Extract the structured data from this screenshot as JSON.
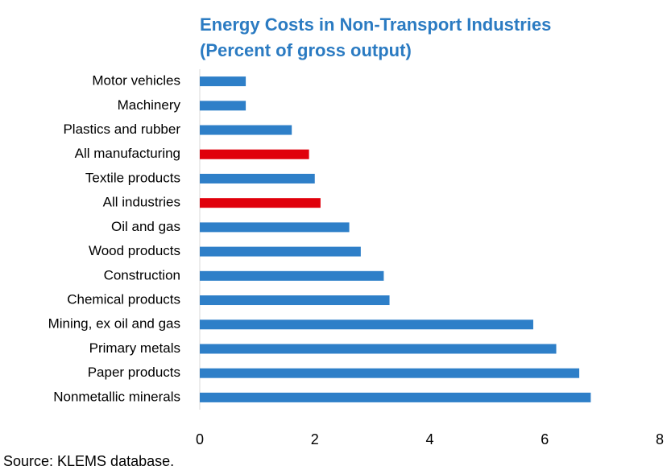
{
  "chart_data": {
    "type": "bar",
    "orientation": "horizontal",
    "title": [
      "Energy Costs in Non-Transport Industries",
      "(Percent of gross output)"
    ],
    "categories": [
      "Motor vehicles",
      "Machinery",
      "Plastics and rubber",
      "All manufacturing",
      "Textile products",
      "All industries",
      "Oil and gas",
      "Wood products",
      "Construction",
      "Chemical products",
      "Mining, ex oil and gas",
      "Primary metals",
      "Paper products",
      "Nonmetallic minerals"
    ],
    "values": [
      0.8,
      0.8,
      1.6,
      1.9,
      2.0,
      2.1,
      2.6,
      2.8,
      3.2,
      3.3,
      5.8,
      6.2,
      6.6,
      6.8
    ],
    "colors": [
      "#2e7fc8",
      "#2e7fc8",
      "#2e7fc8",
      "#e0000b",
      "#2e7fc8",
      "#e0000b",
      "#2e7fc8",
      "#2e7fc8",
      "#2e7fc8",
      "#2e7fc8",
      "#2e7fc8",
      "#2e7fc8",
      "#2e7fc8",
      "#2e7fc8"
    ],
    "xlim": [
      0,
      8
    ],
    "xticks": [
      0,
      2,
      4,
      6,
      8
    ],
    "grid": false,
    "source": "Source: KLEMS database."
  }
}
